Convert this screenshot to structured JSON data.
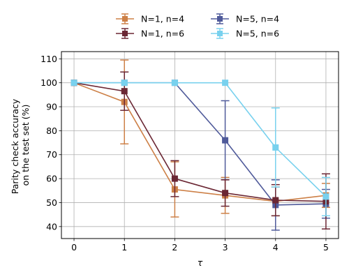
{
  "chart_data": {
    "type": "line",
    "xlabel": "τ",
    "ylabel_lines": [
      "Parity check accuracy",
      "on the test set (%)"
    ],
    "x": [
      0,
      1,
      2,
      3,
      4,
      5
    ],
    "x_ticks": [
      "0",
      "1",
      "2",
      "3",
      "4",
      "5"
    ],
    "y_ticks": [
      "40",
      "50",
      "60",
      "70",
      "80",
      "90",
      "100",
      "110"
    ],
    "xlim": [
      -0.25,
      5.25
    ],
    "ylim": [
      35,
      113
    ],
    "grid": true,
    "legend_position": "top-center",
    "series": [
      {
        "name": "N=1, n=4",
        "color": "#cd8047",
        "values": [
          100,
          92,
          55.5,
          53,
          50.5,
          53
        ],
        "errors": [
          0,
          17.5,
          11.5,
          7.5,
          6,
          5
        ]
      },
      {
        "name": "N=5, n=4",
        "color": "#4f5a9a",
        "values": [
          100,
          100,
          100,
          76,
          49,
          49.5
        ],
        "errors": [
          0,
          0,
          0,
          16.5,
          10.5,
          6
        ]
      },
      {
        "name": "N=1, n=6",
        "color": "#6b2734",
        "values": [
          100,
          96.5,
          60,
          54,
          51,
          50.5
        ],
        "errors": [
          0,
          8,
          7.5,
          5.5,
          6.5,
          11.5
        ]
      },
      {
        "name": "N=5, n=6",
        "color": "#78d1ee",
        "values": [
          100,
          100,
          100,
          100,
          73,
          52.5
        ],
        "errors": [
          0,
          0,
          0,
          0,
          16.5,
          8
        ]
      }
    ]
  }
}
